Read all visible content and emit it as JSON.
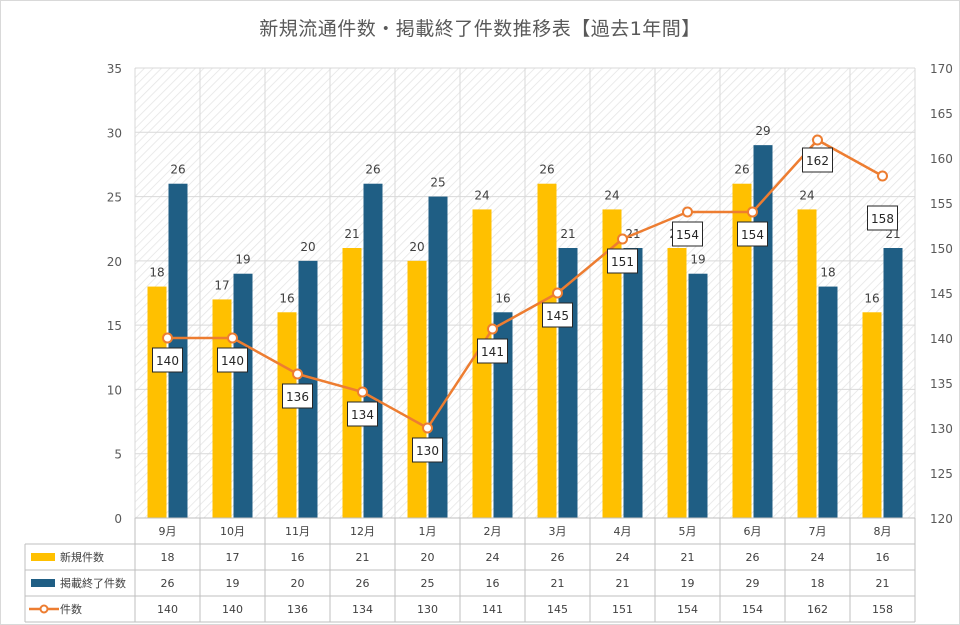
{
  "chart_data": {
    "type": "bar",
    "title": "新規流通件数・掲載終了件数推移表【過去1年間】",
    "categories": [
      "9月",
      "10月",
      "11月",
      "12月",
      "1月",
      "2月",
      "3月",
      "4月",
      "5月",
      "6月",
      "7月",
      "8月"
    ],
    "series": [
      {
        "name": "新規件数",
        "type": "bar",
        "axis": "left",
        "color": "#FFC000",
        "values": [
          18,
          17,
          16,
          21,
          20,
          24,
          26,
          24,
          21,
          26,
          24,
          16
        ]
      },
      {
        "name": "掲載終了件数",
        "type": "bar",
        "axis": "left",
        "color": "#1F5E84",
        "values": [
          26,
          19,
          20,
          26,
          25,
          16,
          21,
          21,
          19,
          29,
          18,
          21
        ]
      },
      {
        "name": "件数",
        "type": "line",
        "axis": "right",
        "color": "#ED7D31",
        "values": [
          140,
          140,
          136,
          134,
          130,
          141,
          145,
          151,
          154,
          154,
          162,
          158
        ]
      }
    ],
    "y_left": {
      "min": 0,
      "max": 35,
      "step": 5
    },
    "y_right": {
      "min": 120,
      "max": 170,
      "step": 5
    },
    "legend": "data-table",
    "grid": true
  }
}
